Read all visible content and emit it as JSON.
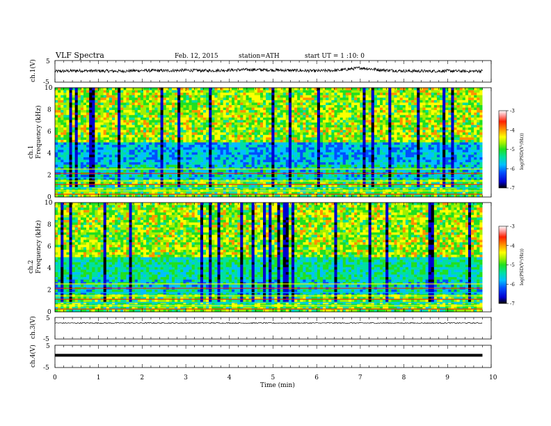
{
  "header": {
    "title": "VLF Spectra",
    "date": "Feb. 12, 2015",
    "station": "station=ATH",
    "start": "start  UT =  1 :10: 0"
  },
  "colors": {
    "spectrogram_scale": [
      "#000000",
      "#0000d0",
      "#0050ff",
      "#00c0ff",
      "#00e0a0",
      "#20e020",
      "#a0f000",
      "#ffff00",
      "#ff9000",
      "#ff2000",
      "#ffa0a0",
      "#ffffff"
    ]
  },
  "chart_data": [
    {
      "type": "line",
      "name": "ch1-voltage",
      "ylabel": "ch.1(V)",
      "ylim": [
        -5,
        5
      ],
      "yticks": [
        "5",
        "-5"
      ],
      "xlim": [
        0,
        10
      ],
      "time_min": [
        0,
        0.5,
        1,
        1.5,
        2,
        2.5,
        3,
        3.5,
        4,
        4.5,
        5,
        5.5,
        6,
        6.5,
        7,
        7.5,
        8,
        8.5,
        9,
        9.5,
        9.8
      ],
      "volts": [
        0,
        0.3,
        0.2,
        0.1,
        0.4,
        0.3,
        0.5,
        0.3,
        0.6,
        0.8,
        0.6,
        0.4,
        0.2,
        0.5,
        1.6,
        0.6,
        0.2,
        0.1,
        0.2,
        0,
        0.2
      ]
    },
    {
      "type": "heatmap",
      "name": "ch1-spectrogram",
      "ylabel": "ch.1\nFrequency (kHz)",
      "yticks": [
        "10",
        "8",
        "6",
        "4",
        "2",
        "0"
      ],
      "ylim": [
        0,
        10
      ],
      "xlim": [
        0,
        10
      ],
      "data_extent_min": 9.8,
      "colorbar": {
        "label": "log(PSD(V²/Hz))",
        "ticks": [
          "-3",
          "-4",
          "-5",
          "-6",
          "-7"
        ],
        "range": [
          -7,
          -3
        ]
      }
    },
    {
      "type": "heatmap",
      "name": "ch2-spectrogram",
      "ylabel": "ch.2\nFrequency (kHz)",
      "yticks": [
        "10",
        "8",
        "6",
        "4",
        "2",
        "0"
      ],
      "ylim": [
        0,
        10
      ],
      "xlim": [
        0,
        10
      ],
      "data_extent_min": 9.8,
      "colorbar": {
        "label": "log(PSD(V²/Hz))",
        "ticks": [
          "-3",
          "-4",
          "-5",
          "-6",
          "-7"
        ],
        "range": [
          -7,
          -3
        ]
      }
    },
    {
      "type": "line",
      "name": "ch3-voltage",
      "ylabel": "ch.3(V)",
      "ylim": [
        -5,
        5
      ],
      "yticks": [
        "5",
        "-5"
      ],
      "xlim": [
        0,
        10
      ],
      "time_min": [
        0,
        9.8
      ],
      "volts": [
        2.4,
        2.4
      ]
    },
    {
      "type": "line",
      "name": "ch4-voltage",
      "ylabel": "ch.4(V)",
      "ylim": [
        -5,
        5
      ],
      "yticks": [
        "5",
        "-5"
      ],
      "xlim": [
        0,
        10
      ],
      "time_min": [
        0,
        9.8
      ],
      "volts": [
        0.5,
        0.5
      ]
    }
  ],
  "xaxis": {
    "label": "Time  (min)",
    "ticks": [
      "0",
      "1",
      "2",
      "3",
      "4",
      "5",
      "6",
      "7",
      "8",
      "9",
      "10"
    ]
  }
}
